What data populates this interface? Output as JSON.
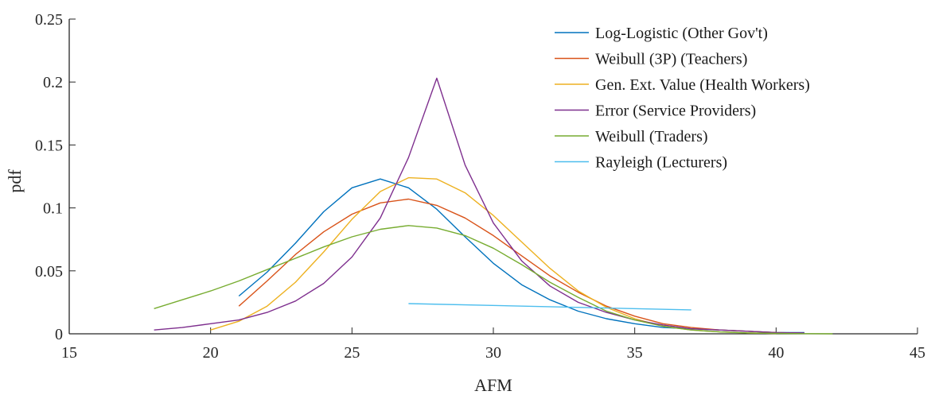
{
  "chart_data": {
    "type": "line",
    "xlabel": "AFM",
    "ylabel": "pdf",
    "xlim": [
      15,
      45
    ],
    "ylim": [
      0,
      0.25
    ],
    "xticks": [
      "15",
      "20",
      "25",
      "30",
      "35",
      "40",
      "45"
    ],
    "yticks": [
      "0",
      "0.05",
      "0.1",
      "0.15",
      "0.2",
      "0.25"
    ],
    "grid": false,
    "legend_position": "top-right",
    "series": [
      {
        "name": "Log-Logistic (Other Gov't)",
        "color": "#0072BD",
        "x": [
          21,
          22,
          23,
          24,
          25,
          26,
          27,
          28,
          29,
          30,
          31,
          32,
          33,
          34,
          35,
          36,
          37,
          38,
          39,
          40,
          41
        ],
        "y": [
          0.03,
          0.049,
          0.072,
          0.097,
          0.116,
          0.123,
          0.116,
          0.099,
          0.077,
          0.056,
          0.039,
          0.027,
          0.018,
          0.012,
          0.008,
          0.005,
          0.004,
          0.003,
          0.002,
          0.001,
          0.001
        ]
      },
      {
        "name": "Weibull (3P) (Teachers)",
        "color": "#D95319",
        "x": [
          21,
          22,
          23,
          24,
          25,
          26,
          27,
          28,
          29,
          30,
          31,
          32,
          33,
          34,
          35,
          36,
          37,
          38,
          39,
          40,
          41
        ],
        "y": [
          0.022,
          0.042,
          0.063,
          0.081,
          0.095,
          0.104,
          0.107,
          0.102,
          0.092,
          0.078,
          0.062,
          0.046,
          0.033,
          0.022,
          0.014,
          0.008,
          0.005,
          0.003,
          0.002,
          0.001,
          0.0005
        ]
      },
      {
        "name": "Gen. Ext. Value (Health Workers)",
        "color": "#EDB120",
        "x": [
          20,
          21,
          22,
          23,
          24,
          25,
          26,
          27,
          28,
          29,
          30,
          31,
          32,
          33,
          34,
          35,
          36,
          37,
          38,
          39,
          40
        ],
        "y": [
          0.003,
          0.01,
          0.022,
          0.041,
          0.065,
          0.091,
          0.113,
          0.124,
          0.123,
          0.112,
          0.094,
          0.073,
          0.052,
          0.034,
          0.021,
          0.012,
          0.006,
          0.003,
          0.0015,
          0.0007,
          0.0003
        ]
      },
      {
        "name": "Error (Service Providers)",
        "color": "#7E2F8E",
        "x": [
          18,
          19,
          20,
          21,
          22,
          23,
          24,
          25,
          26,
          27,
          28,
          29,
          30,
          31,
          32,
          33,
          34,
          35,
          36,
          37,
          38,
          39,
          40,
          41
        ],
        "y": [
          0.003,
          0.005,
          0.008,
          0.011,
          0.017,
          0.026,
          0.04,
          0.061,
          0.092,
          0.14,
          0.203,
          0.134,
          0.088,
          0.058,
          0.038,
          0.025,
          0.017,
          0.011,
          0.007,
          0.004,
          0.003,
          0.002,
          0.001,
          0.0007
        ]
      },
      {
        "name": "Weibull (Traders)",
        "color": "#77AC30",
        "x": [
          18,
          19,
          20,
          21,
          22,
          23,
          24,
          25,
          26,
          27,
          28,
          29,
          30,
          31,
          32,
          33,
          34,
          35,
          36,
          37,
          38,
          39,
          40,
          41,
          42
        ],
        "y": [
          0.02,
          0.027,
          0.034,
          0.042,
          0.051,
          0.06,
          0.069,
          0.077,
          0.083,
          0.086,
          0.084,
          0.078,
          0.068,
          0.055,
          0.041,
          0.029,
          0.018,
          0.011,
          0.006,
          0.003,
          0.0015,
          0.0007,
          0.0003,
          0.0001,
          0.0
        ]
      },
      {
        "name": "Rayleigh (Lecturers)",
        "color": "#4DBEEE",
        "x": [
          27,
          37
        ],
        "y": [
          0.024,
          0.019
        ]
      }
    ]
  }
}
